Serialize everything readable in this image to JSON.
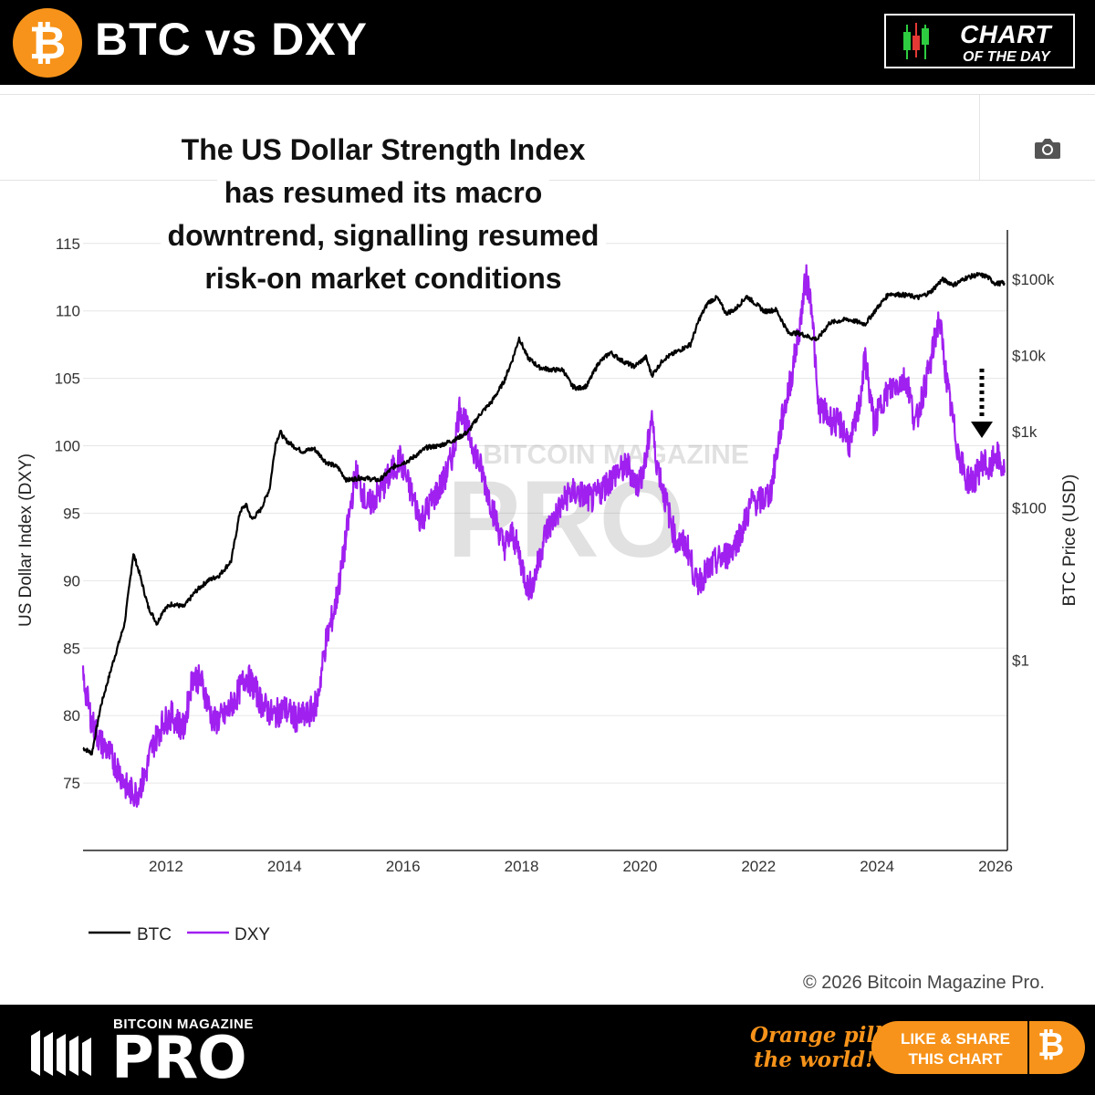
{
  "header": {
    "title": "BTC vs DXY",
    "logo_glyph": "₿",
    "badge_line1": "CHART",
    "badge_line2": "OF THE DAY"
  },
  "headline": {
    "lines": [
      "The US Dollar Strength Index",
      "has resumed its macro",
      "downtrend, signalling resumed",
      "risk-on market conditions"
    ]
  },
  "watermark": {
    "small": "BITCOIN MAGAZINE",
    "big": "PRO"
  },
  "footer": {
    "copyright": "© 2026 Bitcoin Magazine Pro.",
    "brand_small": "BITCOIN MAGAZINE",
    "brand_big": "PRO",
    "tagline_1": "Orange pill",
    "tagline_2": "the world!",
    "share_1": "LIKE & SHARE",
    "share_2": "THIS CHART",
    "share_glyph": "₿"
  },
  "colors": {
    "btc": "#000000",
    "dxy": "#a020f0",
    "orange": "#f7931a"
  },
  "chart_data": {
    "type": "line",
    "title": "",
    "xlabel": "",
    "ylabel_left": "US Dollar Index (DXY)",
    "ylabel_right": "BTC Price (USD)",
    "xlim": [
      2010.6,
      2026.2
    ],
    "ylim_left": [
      70,
      116
    ],
    "ylim_right_log10": [
      -2.5,
      5.65
    ],
    "right_scale": "log",
    "x_ticks": [
      "2012",
      "2014",
      "2016",
      "2018",
      "2020",
      "2022",
      "2024",
      "2026"
    ],
    "y_left_ticks": [
      "75",
      "80",
      "85",
      "90",
      "95",
      "100",
      "105",
      "110",
      "115"
    ],
    "y_right_ticks": [
      "$1",
      "$100",
      "$1k",
      "$10k",
      "$100k"
    ],
    "grid": true,
    "legend_position": "bottom-left",
    "annotation": "dotted arrow pointing down to recent DXY",
    "series": [
      {
        "name": "BTC",
        "axis": "right",
        "x": [
          2010.6,
          2010.75,
          2010.9,
          2011.1,
          2011.3,
          2011.45,
          2011.55,
          2011.7,
          2011.85,
          2011.95,
          2012.1,
          2012.3,
          2012.5,
          2012.7,
          2012.9,
          2013.1,
          2013.25,
          2013.35,
          2013.45,
          2013.6,
          2013.75,
          2013.85,
          2013.93,
          2014.0,
          2014.15,
          2014.3,
          2014.5,
          2014.7,
          2014.9,
          2015.05,
          2015.3,
          2015.6,
          2015.85,
          2016.1,
          2016.4,
          2016.6,
          2016.9,
          2017.1,
          2017.3,
          2017.5,
          2017.7,
          2017.85,
          2017.96,
          2018.1,
          2018.3,
          2018.5,
          2018.7,
          2018.85,
          2018.95,
          2019.1,
          2019.3,
          2019.5,
          2019.7,
          2019.9,
          2020.1,
          2020.2,
          2020.4,
          2020.6,
          2020.85,
          2021.0,
          2021.15,
          2021.3,
          2021.45,
          2021.6,
          2021.8,
          2021.95,
          2022.1,
          2022.3,
          2022.5,
          2022.7,
          2022.9,
          2023.0,
          2023.2,
          2023.5,
          2023.8,
          2024.0,
          2024.2,
          2024.5,
          2024.7,
          2024.9,
          2025.1,
          2025.3,
          2025.5,
          2025.7,
          2025.85,
          2026.0,
          2026.15
        ],
        "values": [
          0.07,
          0.06,
          0.25,
          0.9,
          3.0,
          25,
          14,
          5,
          3,
          4.5,
          5.5,
          5,
          8,
          11,
          13,
          20,
          90,
          110,
          70,
          95,
          180,
          700,
          1000,
          800,
          650,
          550,
          600,
          400,
          340,
          230,
          250,
          230,
          350,
          420,
          620,
          650,
          800,
          1000,
          1700,
          2500,
          4500,
          9000,
          17000,
          9500,
          7000,
          6500,
          6500,
          4000,
          3700,
          4000,
          8000,
          11000,
          8500,
          7200,
          9500,
          5500,
          9000,
          11000,
          14000,
          30000,
          50000,
          58000,
          36000,
          40000,
          60000,
          48000,
          38000,
          40000,
          20000,
          19500,
          17000,
          16500,
          27000,
          30000,
          26000,
          42000,
          65000,
          62000,
          58000,
          68000,
          100000,
          85000,
          105000,
          115000,
          110000,
          88000,
          90000
        ]
      },
      {
        "name": "DXY",
        "axis": "left",
        "x": [
          2010.6,
          2010.75,
          2010.9,
          2011.0,
          2011.2,
          2011.35,
          2011.5,
          2011.65,
          2011.75,
          2011.95,
          2012.1,
          2012.3,
          2012.45,
          2012.6,
          2012.8,
          2013.0,
          2013.2,
          2013.35,
          2013.5,
          2013.6,
          2013.8,
          2014.0,
          2014.2,
          2014.4,
          2014.55,
          2014.7,
          2014.85,
          2014.95,
          2015.1,
          2015.2,
          2015.4,
          2015.6,
          2015.8,
          2015.95,
          2016.1,
          2016.3,
          2016.5,
          2016.7,
          2016.85,
          2016.96,
          2017.1,
          2017.3,
          2017.5,
          2017.7,
          2017.85,
          2017.96,
          2018.1,
          2018.2,
          2018.4,
          2018.6,
          2018.8,
          2018.95,
          2019.2,
          2019.4,
          2019.6,
          2019.8,
          2019.95,
          2020.1,
          2020.2,
          2020.25,
          2020.4,
          2020.6,
          2020.8,
          2020.95,
          2021.1,
          2021.3,
          2021.5,
          2021.7,
          2021.9,
          2022.0,
          2022.2,
          2022.4,
          2022.55,
          2022.7,
          2022.8,
          2022.9,
          2023.0,
          2023.2,
          2023.4,
          2023.55,
          2023.7,
          2023.8,
          2023.95,
          2024.1,
          2024.3,
          2024.5,
          2024.65,
          2024.75,
          2024.9,
          2025.0,
          2025.05,
          2025.2,
          2025.35,
          2025.5,
          2025.65,
          2025.8,
          2025.9,
          2026.0,
          2026.1,
          2026.15
        ],
        "values": [
          82.8,
          79.5,
          78.0,
          77.5,
          76.0,
          74.5,
          74.2,
          75.5,
          77.5,
          79.5,
          80.0,
          79.0,
          83.0,
          82.5,
          79.5,
          80.0,
          81.5,
          83.0,
          82.0,
          81.0,
          80.0,
          80.5,
          79.8,
          80.0,
          81.0,
          85.5,
          88.0,
          90.5,
          95.0,
          98.0,
          95.5,
          96.5,
          98.0,
          99.0,
          97.0,
          94.5,
          96.0,
          97.5,
          99.5,
          103.0,
          101.0,
          98.5,
          95.5,
          92.5,
          93.5,
          92.0,
          89.5,
          89.8,
          93.5,
          95.0,
          96.5,
          96.5,
          96.0,
          97.0,
          98.0,
          98.5,
          97.0,
          98.8,
          102.5,
          99.5,
          96.5,
          93.0,
          92.5,
          89.8,
          90.5,
          91.5,
          92.0,
          93.5,
          96.0,
          95.8,
          96.5,
          102.0,
          105.0,
          109.0,
          112.5,
          110.5,
          103.0,
          102.0,
          101.5,
          100.0,
          103.0,
          106.5,
          101.5,
          103.5,
          104.5,
          105.0,
          101.5,
          103.5,
          106.0,
          108.5,
          109.5,
          104.0,
          100.0,
          97.5,
          97.5,
          99.0,
          98.0,
          99.5,
          98.5,
          98.0
        ]
      }
    ]
  }
}
